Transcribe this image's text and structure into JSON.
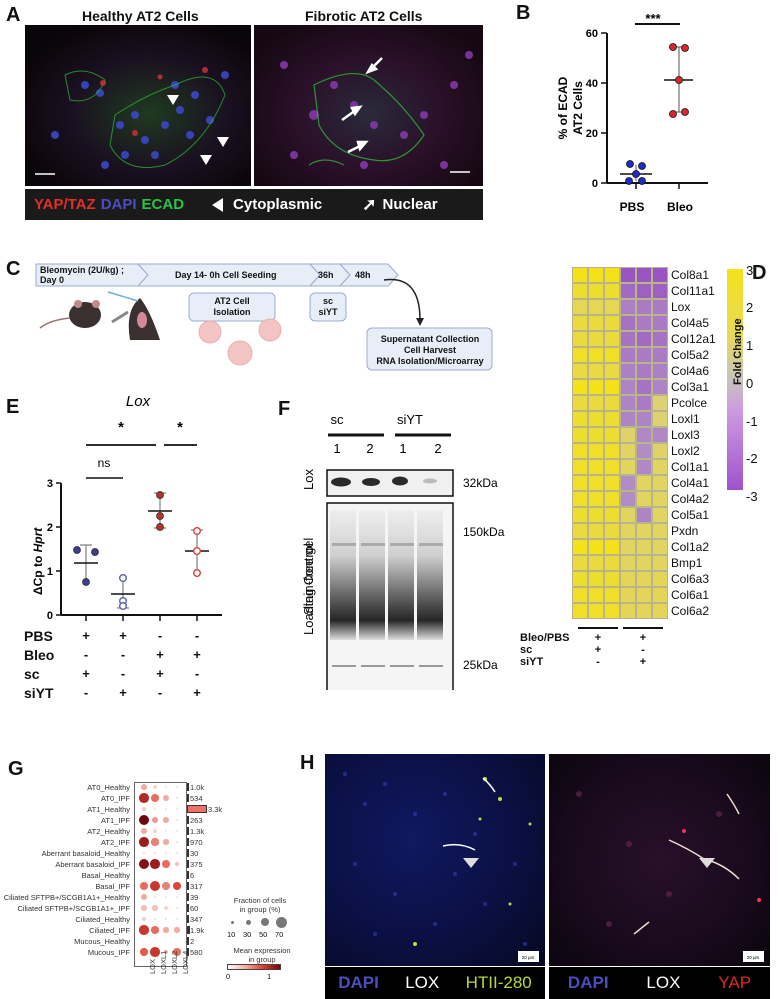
{
  "panelA": {
    "label": "A",
    "title_left": "Healthy AT2 Cells",
    "title_right": "Fibrotic AT2 Cells",
    "legend": {
      "yap": "YAP/TAZ",
      "dapi": "DAPI",
      "ecad": "ECAD",
      "cyto": "Cytoplasmic",
      "nuclear": "Nuclear",
      "colors": {
        "yap": "#e0302a",
        "dapi": "#4a4ec0",
        "ecad": "#2ec24a"
      }
    }
  },
  "panelB": {
    "label": "B",
    "significance": "***",
    "ylabel_line1": "% of ECAD",
    "ylabel_line2": "AT2 Cells",
    "yticks": [
      "0",
      "20",
      "40",
      "60"
    ],
    "categories": [
      "PBS",
      "Bleo"
    ]
  },
  "panelC": {
    "label": "C",
    "steps": [
      "Bleomycin (2U/kg) ;",
      "Day 0",
      "Day 14- 0h Cell Seeding",
      "36h",
      "48h"
    ],
    "box_isolation_1": "AT2 Cell",
    "box_isolation_2": "Isolation",
    "box_treat_1": "sc",
    "box_treat_2": "siYT",
    "box_final_1": "Supernatant Collection",
    "box_final_2": "Cell Harvest",
    "box_final_3": "RNA Isolation/Microarray"
  },
  "panelD": {
    "label": "D",
    "genes": [
      "Col8a1",
      "Col11a1",
      "Lox",
      "Col4a5",
      "Col12a1",
      "Col5a2",
      "Col4a6",
      "Col3a1",
      "Pcolce",
      "Loxl1",
      "Loxl3",
      "Loxl2",
      "Col1a1",
      "Col4a1",
      "Col4a2",
      "Col5a1",
      "Pxdn",
      "Col1a2",
      "Bmp1",
      "Col6a3",
      "Col6a1",
      "Col6a2"
    ],
    "colorbar_ticks": [
      "3",
      "2",
      "1",
      "0",
      "-1",
      "-2",
      "-3"
    ],
    "colorbar_label": "Fold Change",
    "cond_labels": [
      "Bleo/PBS",
      "sc",
      "siYT"
    ],
    "group1": [
      "+",
      "+",
      "-"
    ],
    "group2": [
      "+",
      "-",
      "+"
    ]
  },
  "panelE": {
    "label": "E",
    "title": "Lox",
    "ylabel_pre": "ΔCp to ",
    "ylabel_it": "Hprt",
    "yticks": [
      "0",
      "1",
      "2",
      "3"
    ],
    "sig1": "*",
    "sig2": "*",
    "sig_ns": "ns",
    "rows": [
      {
        "name": "PBS",
        "vals": [
          "+",
          "+",
          "-",
          "-"
        ]
      },
      {
        "name": "Bleo",
        "vals": [
          "-",
          "-",
          "+",
          "+"
        ]
      },
      {
        "name": "sc",
        "vals": [
          "+",
          "-",
          "+",
          "-"
        ]
      },
      {
        "name": "siYT",
        "vals": [
          "-",
          "+",
          "-",
          "+"
        ]
      }
    ]
  },
  "panelF": {
    "label": "F",
    "group1": "sc",
    "group2": "siYT",
    "lanes": [
      "1",
      "2",
      "1",
      "2"
    ],
    "blot_label": "Lox",
    "gel_label_1": "Loading Control",
    "gel_label_2": "Stain-free gel",
    "mw": [
      "32kDa",
      "150kDa",
      "25kDa"
    ]
  },
  "panelG": {
    "label": "G",
    "groups": [
      {
        "name": "AT0_Healthy",
        "count": "1.0k"
      },
      {
        "name": "AT0_IPF",
        "count": "534"
      },
      {
        "name": "AT1_Healthy",
        "count": "3.3k"
      },
      {
        "name": "AT1_IPF",
        "count": "263"
      },
      {
        "name": "AT2_Healthy",
        "count": "1.3k"
      },
      {
        "name": "AT2_IPF",
        "count": "970"
      },
      {
        "name": "Aberrant basaloid_Healthy",
        "count": "30"
      },
      {
        "name": "Aberrant basaloid_IPF",
        "count": "375"
      },
      {
        "name": "Basal_Healthy",
        "count": "6"
      },
      {
        "name": "Basal_IPF",
        "count": "317"
      },
      {
        "name": "Ciliated SFTPB+/SCGB1A1+_Healthy",
        "count": "39"
      },
      {
        "name": "Ciliated SFTPB+/SCGB1A1+_IPF",
        "count": "60"
      },
      {
        "name": "Ciliated_Healthy",
        "count": "347"
      },
      {
        "name": "Ciliated_IPF",
        "count": "1.9k"
      },
      {
        "name": "Mucous_Healthy",
        "count": "2"
      },
      {
        "name": "Mucous_IPF",
        "count": "580"
      }
    ],
    "genes": [
      "LOX",
      "LOXL1",
      "LOXL2",
      "LOXL4"
    ],
    "size_legend_title_1": "Fraction of cells",
    "size_legend_title_2": "in group (%)",
    "size_ticks": [
      "10",
      "30",
      "50",
      "70"
    ],
    "color_legend_title_1": "Mean expression",
    "color_legend_title_2": "in group",
    "color_ticks": [
      "0",
      "1"
    ]
  },
  "panelH": {
    "label": "H",
    "scale": "20 µm",
    "left_legend": {
      "dapi": "DAPI",
      "lox": "LOX",
      "marker": "HTII-280"
    },
    "right_legend": {
      "dapi": "DAPI",
      "lox": "LOX",
      "marker": "YAP"
    }
  },
  "chart_data": [
    {
      "type": "scatter",
      "panel": "B",
      "title": "",
      "xlabel": "",
      "ylabel": "% of ECAD AT2 Cells",
      "categories": [
        "PBS",
        "Bleo"
      ],
      "ylim": [
        0,
        60
      ],
      "series": [
        {
          "name": "PBS",
          "values": [
            7,
            7,
            3,
            0.5,
            0.5
          ],
          "mean": 3.5,
          "sd_range": [
            0.5,
            7
          ]
        },
        {
          "name": "Bleo",
          "values": [
            54.5,
            54,
            41,
            28,
            28.5
          ],
          "mean": 41,
          "sd_range": [
            28,
            54
          ]
        }
      ],
      "annotations": [
        "***"
      ]
    },
    {
      "type": "heatmap",
      "panel": "D",
      "rows": [
        "Col8a1",
        "Col11a1",
        "Lox",
        "Col4a5",
        "Col12a1",
        "Col5a2",
        "Col4a6",
        "Col3a1",
        "Pcolce",
        "Loxl1",
        "Loxl3",
        "Loxl2",
        "Col1a1",
        "Col4a1",
        "Col4a2",
        "Col5a1",
        "Pxdn",
        "Col1a2",
        "Bmp1",
        "Col6a3",
        "Col6a1",
        "Col6a2"
      ],
      "columns": [
        "sc-1",
        "sc-2",
        "sc-3",
        "siYT-1",
        "siYT-2",
        "siYT-3"
      ],
      "values": [
        [
          3,
          3,
          3,
          -2.5,
          -2.5,
          -2.5
        ],
        [
          2.6,
          2.6,
          2.6,
          -2,
          -2.2,
          -2.2
        ],
        [
          2,
          2,
          2,
          -1.5,
          -1.6,
          -1.6
        ],
        [
          2.4,
          2.4,
          2.4,
          -1.8,
          -1.6,
          -1.6
        ],
        [
          2.4,
          2.4,
          2.4,
          -1.8,
          -2,
          -1.8
        ],
        [
          2.8,
          2.8,
          2.8,
          -1.6,
          -1.6,
          -1.6
        ],
        [
          2.3,
          2.3,
          2.3,
          -1.5,
          -1.6,
          -1.5
        ],
        [
          3,
          3,
          3,
          -1.4,
          -1.8,
          -1.4
        ],
        [
          2.4,
          2.4,
          2.4,
          -1.4,
          -1.6,
          1.5
        ],
        [
          2.6,
          2.6,
          2.6,
          -1.4,
          -1.4,
          1.5
        ],
        [
          2.6,
          2.6,
          2.6,
          1.6,
          -1.3,
          -1.3
        ],
        [
          2.7,
          2.7,
          2.7,
          1.7,
          -1.2,
          1.6
        ],
        [
          2.7,
          2.7,
          2.7,
          1.8,
          -1.3,
          1.8
        ],
        [
          2.7,
          2.7,
          2.7,
          -1.2,
          1.8,
          1.8
        ],
        [
          2.7,
          2.7,
          2.7,
          -1.2,
          1.8,
          1.8
        ],
        [
          2.6,
          2.6,
          2.6,
          1.8,
          -1.4,
          1.8
        ],
        [
          2.4,
          2.4,
          2.4,
          1.8,
          1.8,
          1.8
        ],
        [
          3,
          3,
          3,
          1.8,
          1.8,
          1.8
        ],
        [
          2.4,
          2.4,
          2.4,
          1.8,
          1.8,
          1.8
        ],
        [
          2.6,
          2.6,
          2.6,
          1.9,
          1.9,
          1.9
        ],
        [
          2.7,
          2.7,
          2.7,
          1.9,
          1.9,
          1.9
        ],
        [
          2.7,
          2.7,
          2.7,
          1.9,
          1.9,
          1.9
        ]
      ],
      "colorbar": {
        "label": "Fold Change",
        "range": [
          -3,
          3
        ],
        "low": "#8f3fc0",
        "mid": "#c8c0c8",
        "high": "#f4e11a"
      }
    },
    {
      "type": "scatter",
      "panel": "E",
      "title": "Lox",
      "ylabel": "ΔCp to Hprt",
      "ylim": [
        0,
        3
      ],
      "categories": [
        "PBS+sc",
        "PBS+siYT",
        "Bleo+sc",
        "Bleo+siYT"
      ],
      "series": [
        {
          "name": "PBS+sc",
          "values": [
            1.45,
            1.4,
            0.7
          ],
          "mean": 1.18,
          "sd_range": [
            0.75,
            1.6
          ],
          "filled": true,
          "color": "#3a3f8f"
        },
        {
          "name": "PBS+siYT",
          "values": [
            0.85,
            0.3,
            0.2
          ],
          "mean": 0.48,
          "sd_range": [
            0.15,
            0.85
          ],
          "filled": false,
          "color": "#5a5fb0"
        },
        {
          "name": "Bleo+sc",
          "values": [
            2.8,
            2.25,
            2.0
          ],
          "mean": 2.37,
          "sd_range": [
            1.97,
            2.77
          ],
          "filled": true,
          "color": "#b8322a"
        },
        {
          "name": "Bleo+siYT",
          "values": [
            1.9,
            1.45,
            0.95
          ],
          "mean": 1.45,
          "sd_range": [
            0.97,
            1.93
          ],
          "filled": false,
          "color": "#e0403a"
        }
      ],
      "annotations": [
        "* PBS+sc vs Bleo+sc",
        "* Bleo+sc vs Bleo+siYT",
        "ns PBS+sc vs PBS+siYT"
      ]
    },
    {
      "type": "scatter",
      "panel": "G",
      "subtype": "dotplot",
      "x": [
        "LOX",
        "LOXL1",
        "LOXL2",
        "LOXL4"
      ],
      "y": [
        "AT0_Healthy",
        "AT0_IPF",
        "AT1_Healthy",
        "AT1_IPF",
        "AT2_Healthy",
        "AT2_IPF",
        "Aberrant basaloid_Healthy",
        "Aberrant basaloid_IPF",
        "Basal_Healthy",
        "Basal_IPF",
        "Ciliated SFTPB+/SCGB1A1+_Healthy",
        "Ciliated SFTPB+/SCGB1A1+_IPF",
        "Ciliated_Healthy",
        "Ciliated_IPF",
        "Mucous_Healthy",
        "Mucous_IPF"
      ],
      "group_counts": [
        "1.0k",
        "534",
        "3.3k",
        "263",
        "1.3k",
        "970",
        "30",
        "375",
        "6",
        "317",
        "39",
        "60",
        "347",
        "1.9k",
        "2",
        "580"
      ],
      "fraction_pct": [
        [
          25,
          10,
          5,
          3
        ],
        [
          55,
          40,
          25,
          5
        ],
        [
          10,
          5,
          3,
          2
        ],
        [
          60,
          25,
          20,
          3
        ],
        [
          20,
          8,
          5,
          3
        ],
        [
          55,
          30,
          15,
          5
        ],
        [
          3,
          3,
          3,
          3
        ],
        [
          60,
          55,
          35,
          10
        ],
        [
          0,
          0,
          0,
          0
        ],
        [
          45,
          60,
          35,
          45
        ],
        [
          25,
          5,
          3,
          3
        ],
        [
          15,
          15,
          8,
          3
        ],
        [
          10,
          5,
          5,
          3
        ],
        [
          50,
          35,
          15,
          15
        ],
        [
          0,
          0,
          0,
          0
        ],
        [
          45,
          55,
          10,
          35
        ]
      ],
      "mean_expression": [
        [
          0.3,
          0.1,
          0.05,
          0.05
        ],
        [
          1.0,
          0.6,
          0.3,
          0.1
        ],
        [
          0.15,
          0.1,
          0.05,
          0.05
        ],
        [
          1.3,
          0.4,
          0.3,
          0.05
        ],
        [
          0.3,
          0.1,
          0.05,
          0.05
        ],
        [
          1.1,
          0.5,
          0.3,
          0.1
        ],
        [
          0.1,
          0.1,
          0.1,
          0.1
        ],
        [
          1.2,
          1.1,
          0.6,
          0.2
        ],
        [
          0,
          0,
          0,
          0
        ],
        [
          0.6,
          0.9,
          0.5,
          0.8
        ],
        [
          0.3,
          0.1,
          0.05,
          0.05
        ],
        [
          0.2,
          0.2,
          0.1,
          0.05
        ],
        [
          0.15,
          0.1,
          0.1,
          0.05
        ],
        [
          0.9,
          0.6,
          0.3,
          0.3
        ],
        [
          0,
          0,
          0,
          0
        ],
        [
          0.7,
          0.9,
          0.3,
          0.6
        ]
      ],
      "size_legend": {
        "title": "Fraction of cells in group (%)",
        "ticks": [
          10,
          30,
          50,
          70
        ]
      },
      "color_legend": {
        "title": "Mean expression in group",
        "range": [
          0,
          1.3
        ],
        "ticks": [
          0,
          1
        ]
      }
    }
  ]
}
